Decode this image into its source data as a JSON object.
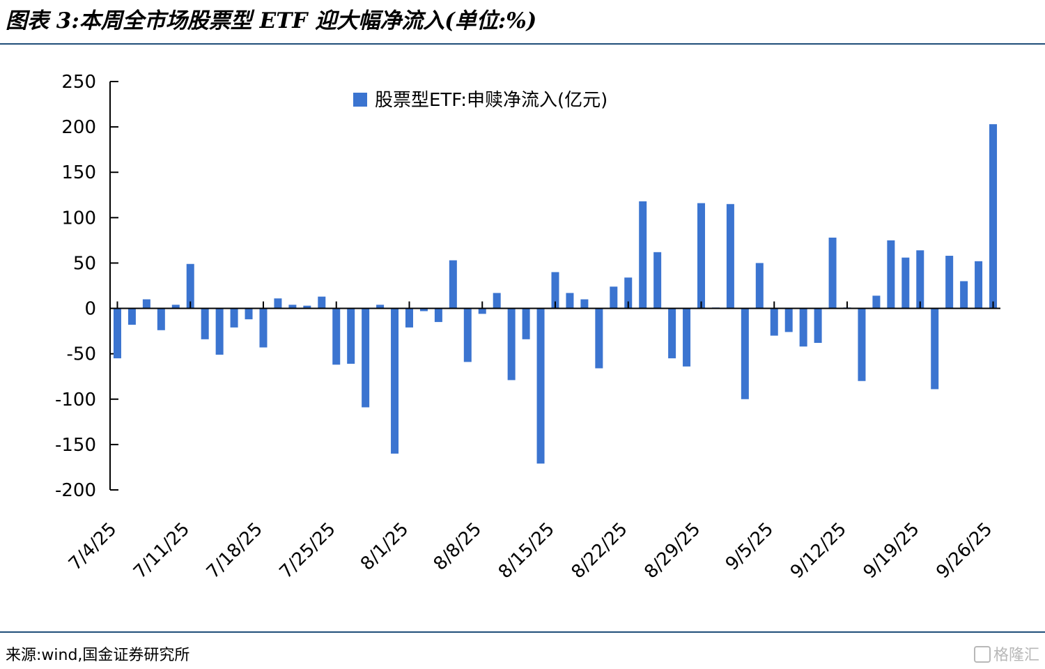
{
  "header": {
    "title": "图表 3:本周全市场股票型 ETF 迎大幅净流入(单位:%)"
  },
  "footer": {
    "source": "来源:wind,国金证券研究所",
    "watermark": "格隆汇"
  },
  "colors": {
    "bar": "#3b74d0",
    "rule": "#1f4e79"
  },
  "chart_data": {
    "type": "bar",
    "legend": "股票型ETF:申赎净流入(亿元)",
    "ylim": [
      -200,
      250
    ],
    "yticks": [
      250,
      200,
      150,
      100,
      50,
      0,
      -50,
      -100,
      -150,
      -200
    ],
    "xtick_labels": [
      "7/4/25",
      "7/11/25",
      "7/18/25",
      "7/25/25",
      "8/1/25",
      "8/8/25",
      "8/15/25",
      "8/22/25",
      "8/29/25",
      "9/5/25",
      "9/12/25",
      "9/19/25",
      "9/26/25"
    ],
    "dates": [
      "7/4/25",
      "7/7/25",
      "7/8/25",
      "7/9/25",
      "7/10/25",
      "7/11/25",
      "7/14/25",
      "7/15/25",
      "7/16/25",
      "7/17/25",
      "7/18/25",
      "7/21/25",
      "7/22/25",
      "7/23/25",
      "7/24/25",
      "7/25/25",
      "7/28/25",
      "7/29/25",
      "7/30/25",
      "7/31/25",
      "8/1/25",
      "8/4/25",
      "8/5/25",
      "8/6/25",
      "8/7/25",
      "8/8/25",
      "8/11/25",
      "8/12/25",
      "8/13/25",
      "8/14/25",
      "8/15/25",
      "8/18/25",
      "8/19/25",
      "8/20/25",
      "8/21/25",
      "8/22/25",
      "8/25/25",
      "8/26/25",
      "8/27/25",
      "8/28/25",
      "8/29/25",
      "9/1/25",
      "9/2/25",
      "9/3/25",
      "9/4/25",
      "9/5/25",
      "9/8/25",
      "9/9/25",
      "9/10/25",
      "9/11/25",
      "9/12/25",
      "9/15/25",
      "9/16/25",
      "9/17/25",
      "9/18/25",
      "9/19/25",
      "9/22/25",
      "9/23/25",
      "9/24/25",
      "9/25/25",
      "9/26/25"
    ],
    "values": [
      -55,
      -18,
      10,
      -24,
      4,
      49,
      -34,
      -51,
      -21,
      -12,
      -43,
      11,
      4,
      3,
      13,
      -62,
      -61,
      -109,
      4,
      -160,
      -21,
      -3,
      -15,
      53,
      -59,
      -6,
      17,
      -79,
      -34,
      -171,
      40,
      17,
      10,
      -66,
      24,
      34,
      118,
      62,
      -55,
      -64,
      116,
      1,
      115,
      -100,
      50,
      -30,
      -26,
      -42,
      -38,
      78,
      1,
      -80,
      14,
      75,
      56,
      64,
      -89,
      58,
      30,
      52,
      203
    ]
  }
}
